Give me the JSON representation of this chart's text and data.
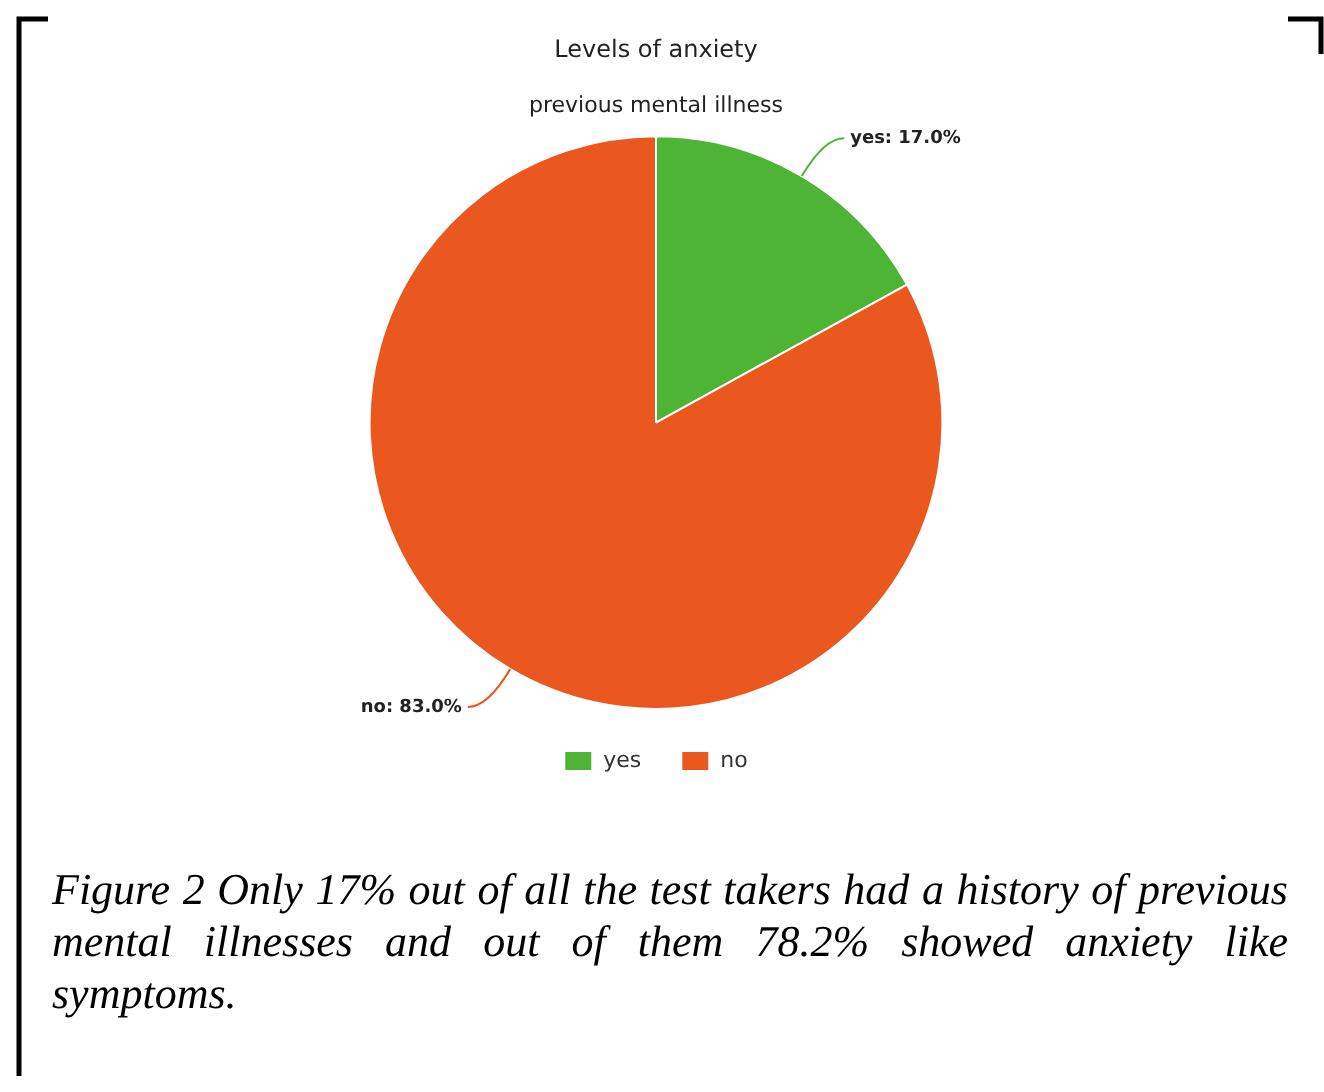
{
  "chart_data": {
    "type": "pie",
    "title": "Levels of anxiety",
    "subtitle": "previous mental illness",
    "categories": [
      "yes",
      "no"
    ],
    "values": [
      17.0,
      83.0
    ],
    "colors": [
      "#4db436",
      "#ea571f"
    ],
    "value_labels": [
      "yes: 17.0%",
      "no: 83.0%"
    ],
    "legend": "bottom",
    "annotations": [
      "Figure 2 Only 17% out of all the test takers had a history of previous mental illnesses and out of them 78.2% showed anxiety like symptoms."
    ]
  }
}
